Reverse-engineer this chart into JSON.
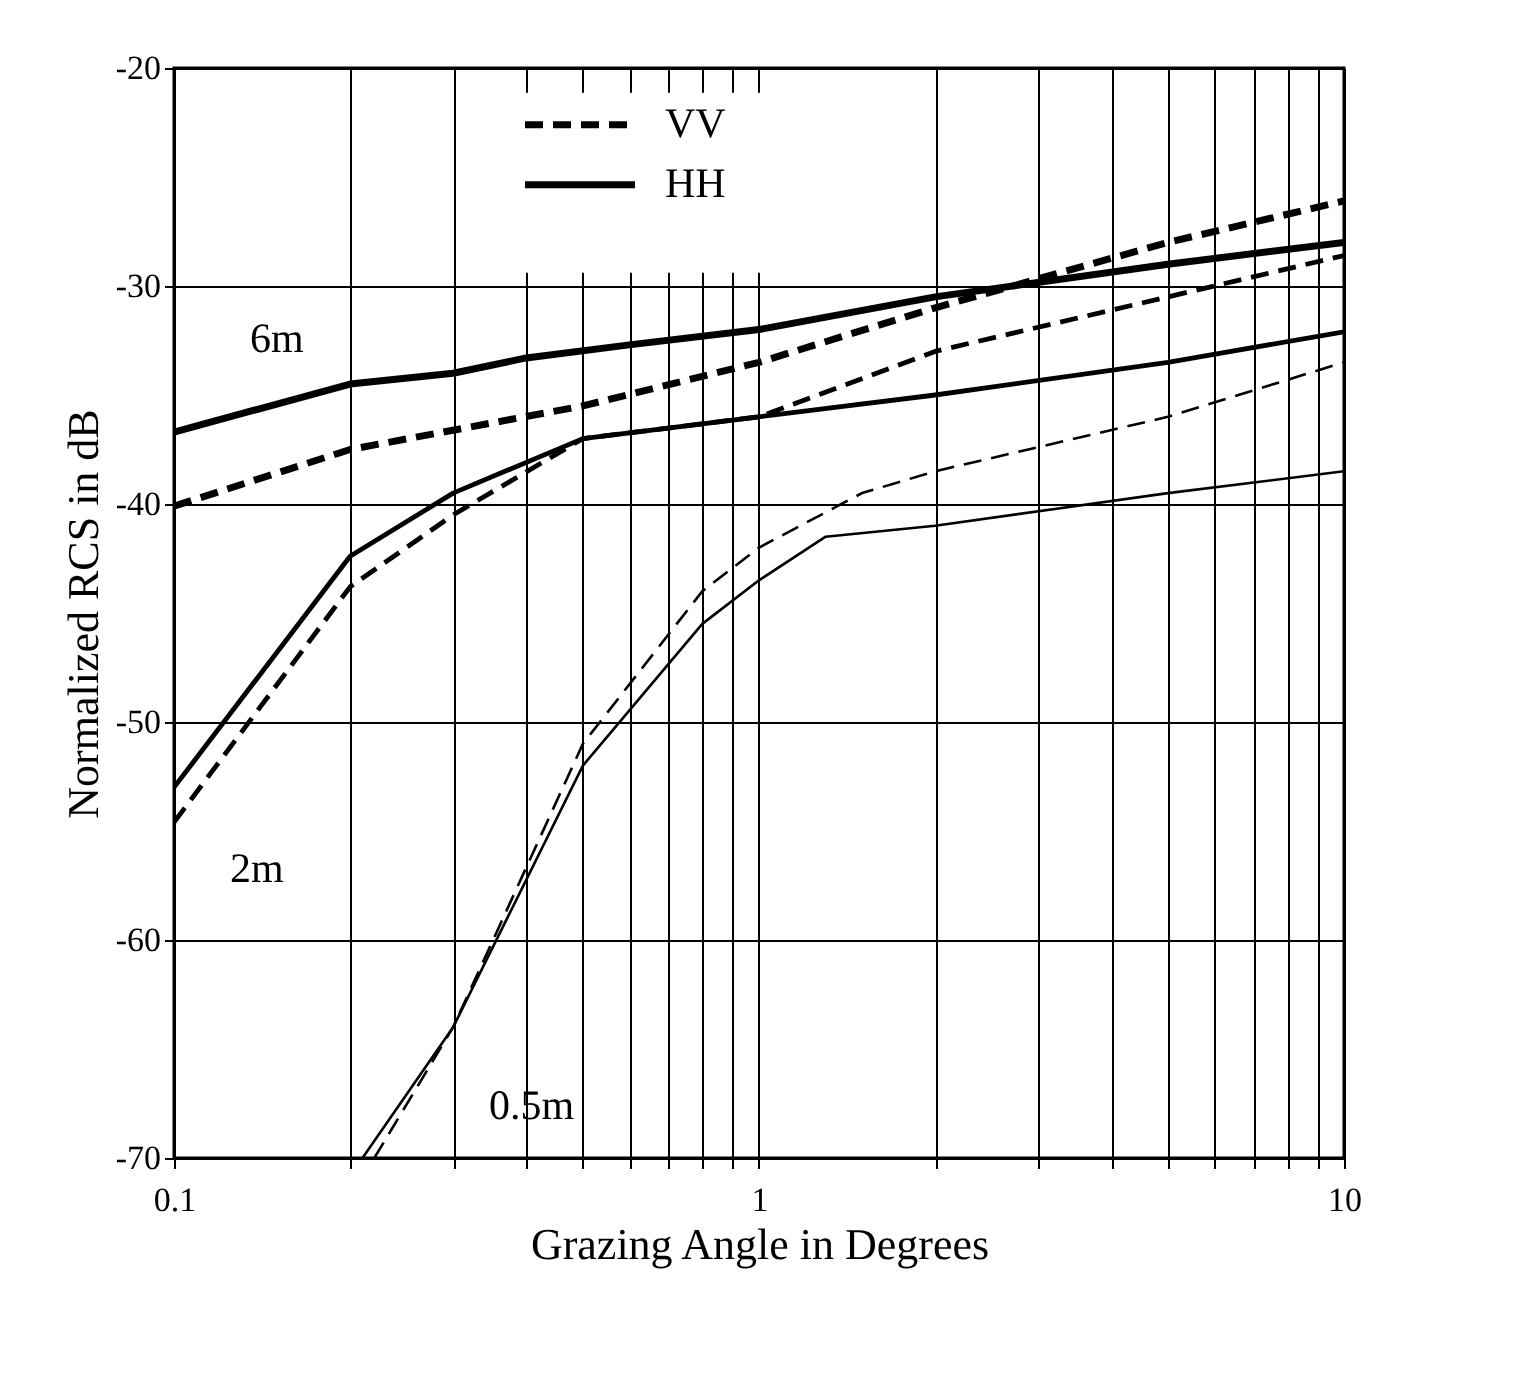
{
  "chart_data": {
    "type": "line",
    "xlabel": "Grazing Angle in Degrees",
    "ylabel": "Normalized RCS in dB",
    "log": "x",
    "xlim": [
      0.1,
      10
    ],
    "ylim": [
      -70,
      -20
    ],
    "yticks": [
      -70,
      -60,
      -50,
      -40,
      -30,
      -20
    ],
    "xticks": [
      0.1,
      {
        "value": 0.2,
        "label": null
      },
      {
        "value": 0.3,
        "label": null
      },
      {
        "value": 0.4,
        "label": null
      },
      {
        "value": 0.5,
        "label": null
      },
      {
        "value": 0.6,
        "label": null
      },
      {
        "value": 0.7,
        "label": null
      },
      {
        "value": 0.8,
        "label": null
      },
      {
        "value": 0.9,
        "label": null
      },
      1,
      {
        "value": 2,
        "label": null
      },
      {
        "value": 3,
        "label": null
      },
      {
        "value": 4,
        "label": null
      },
      {
        "value": 5,
        "label": null
      },
      {
        "value": 6,
        "label": null
      },
      {
        "value": 7,
        "label": null
      },
      {
        "value": 8,
        "label": null
      },
      {
        "value": 9,
        "label": null
      },
      10
    ],
    "grid": true,
    "legend": "top",
    "series": [
      {
        "name": "VV",
        "color": "#000000",
        "line_style": "dashed",
        "x": [
          0.1,
          0.2,
          0.5,
          1,
          2,
          5,
          10
        ],
        "values": [
          -40.1,
          -37.5,
          -35.5,
          -33.5,
          -31,
          -28,
          -26.1
        ]
      },
      {
        "name": "HH",
        "color": "#000000",
        "line_style": "solid",
        "x": [
          0.1,
          0.2,
          0.3,
          0.4,
          0.6,
          1,
          2,
          5,
          10
        ],
        "values": [
          -36.7,
          -34.5,
          -34,
          -33.3,
          -32.7,
          -32,
          -30.5,
          -29,
          -28
        ]
      },
      {
        "color": "#000000",
        "line_style": "dashed",
        "x": [
          0.1,
          0.2,
          0.3,
          0.5,
          1,
          2,
          5,
          10
        ],
        "values": [
          -54.6,
          -43.8,
          -40.5,
          -37,
          -36,
          -33,
          -30.5,
          -28.6
        ]
      },
      {
        "color": "#000000",
        "line_style": "solid",
        "x": [
          0.1,
          0.2,
          0.3,
          0.5,
          1,
          2,
          5,
          10
        ],
        "values": [
          -53,
          -42.4,
          -39.5,
          -37,
          -36,
          -35,
          -33.5,
          -32.1
        ]
      },
      {
        "color": "#000000",
        "line_style": "dashed",
        "x": [
          0.22,
          0.3,
          0.5,
          0.8,
          1,
          1.5,
          2,
          5,
          10
        ],
        "values": [
          -70,
          -64,
          -51,
          -44,
          -42,
          -39.5,
          -38.5,
          -36,
          -33.5
        ]
      },
      {
        "color": "#000000",
        "line_style": "solid",
        "x": [
          0.21,
          0.3,
          0.5,
          0.8,
          1,
          1.3,
          2,
          5,
          10
        ],
        "values": [
          -70,
          -64,
          -52,
          -45.5,
          -43.5,
          -41.5,
          -41,
          -39.5,
          -38.5
        ]
      }
    ],
    "annotations": [
      {
        "text": "6m",
        "x": 0.2,
        "y": -34.5
      },
      {
        "text": "2m",
        "x": 0.1,
        "y": -54.6
      },
      {
        "text": "0.5m",
        "x": 0.3,
        "y": -64
      }
    ]
  }
}
